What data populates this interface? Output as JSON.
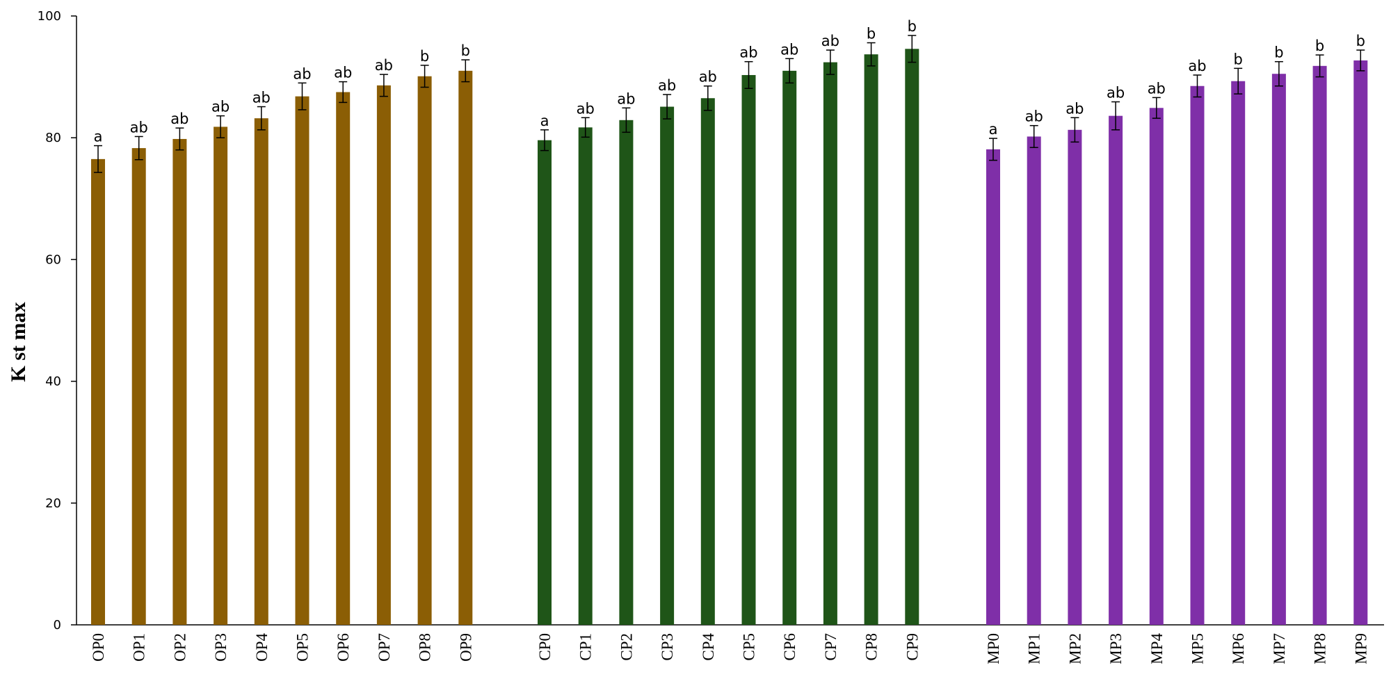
{
  "chart_data": {
    "type": "bar",
    "ylabel": "K st max",
    "xlabel": "",
    "ylim": [
      0,
      100
    ],
    "yticks": [
      0,
      20,
      40,
      60,
      80,
      100
    ],
    "grid": false,
    "legend": "none",
    "colors": {
      "OP": "#8B5E05",
      "CP": "#1F5518",
      "MP": "#7F2FA8"
    },
    "groups": [
      {
        "key": "OP",
        "categories": [
          "OP0",
          "OP1",
          "OP2",
          "OP3",
          "OP4",
          "OP5",
          "OP6",
          "OP7",
          "OP8",
          "OP9"
        ],
        "values": [
          76.5,
          78.3,
          79.8,
          81.8,
          83.2,
          86.8,
          87.5,
          88.6,
          90.1,
          91.0
        ],
        "errors": [
          2.2,
          1.9,
          1.8,
          1.8,
          1.9,
          2.2,
          1.7,
          1.8,
          1.8,
          1.8
        ],
        "letters": [
          "a",
          "ab",
          "ab",
          "ab",
          "ab",
          "ab",
          "ab",
          "ab",
          "b",
          "b"
        ]
      },
      {
        "key": "CP",
        "categories": [
          "CP0",
          "CP1",
          "CP2",
          "CP3",
          "CP4",
          "CP5",
          "CP6",
          "CP7",
          "CP8",
          "CP9"
        ],
        "values": [
          79.6,
          81.7,
          82.9,
          85.1,
          86.5,
          90.3,
          91.0,
          92.4,
          93.7,
          94.6
        ],
        "errors": [
          1.7,
          1.6,
          2.0,
          2.0,
          2.0,
          2.2,
          2.0,
          2.0,
          1.9,
          2.2
        ],
        "letters": [
          "a",
          "ab",
          "ab",
          "ab",
          "ab",
          "ab",
          "ab",
          "ab",
          "b",
          "b"
        ]
      },
      {
        "key": "MP",
        "categories": [
          "MP0",
          "MP1",
          "MP2",
          "MP3",
          "MP4",
          "MP5",
          "MP6",
          "MP7",
          "MP8",
          "MP9"
        ],
        "values": [
          78.1,
          80.2,
          81.3,
          83.6,
          84.9,
          88.5,
          89.3,
          90.5,
          91.8,
          92.7
        ],
        "errors": [
          1.8,
          1.8,
          2.0,
          2.3,
          1.7,
          1.8,
          2.1,
          2.0,
          1.8,
          1.7
        ],
        "letters": [
          "a",
          "ab",
          "ab",
          "ab",
          "ab",
          "ab",
          "b",
          "b",
          "b",
          "b"
        ]
      }
    ]
  }
}
